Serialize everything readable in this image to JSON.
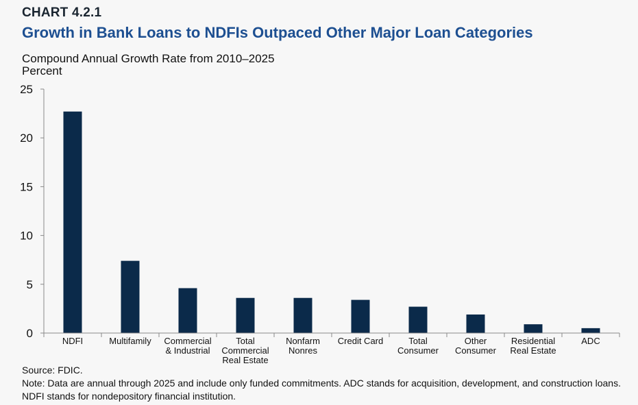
{
  "header": {
    "chart_number": "CHART 4.2.1",
    "title": "Growth in Bank Loans to NDFIs Outpaced Other Major Loan Categories",
    "subtitle": "Compound Annual Growth Rate from 2010–2025",
    "unit": "Percent"
  },
  "chart_data": {
    "type": "bar",
    "categories": [
      [
        "NDFI"
      ],
      [
        "Multifamily"
      ],
      [
        "Commercial",
        "& Industrial"
      ],
      [
        "Total",
        "Commercial",
        "Real Estate"
      ],
      [
        "Nonfarm",
        "Nonres"
      ],
      [
        "Credit Card"
      ],
      [
        "Total",
        "Consumer"
      ],
      [
        "Other",
        "Consumer"
      ],
      [
        "Residential",
        "Real Estate"
      ],
      [
        "ADC"
      ]
    ],
    "values": [
      22.7,
      7.4,
      4.6,
      3.6,
      3.6,
      3.4,
      2.7,
      1.9,
      0.9,
      0.5
    ],
    "ylim": [
      0,
      25
    ],
    "yticks": [
      0,
      5,
      10,
      15,
      20,
      25
    ],
    "bar_color": "#0b2a4a",
    "grid": false
  },
  "footer": {
    "source": "Source: FDIC.",
    "note": "Note: Data are annual through 2025 and include only funded commitments. ADC stands for acquisition, development, and construction loans. NDFI stands for nondepository financial institution."
  }
}
